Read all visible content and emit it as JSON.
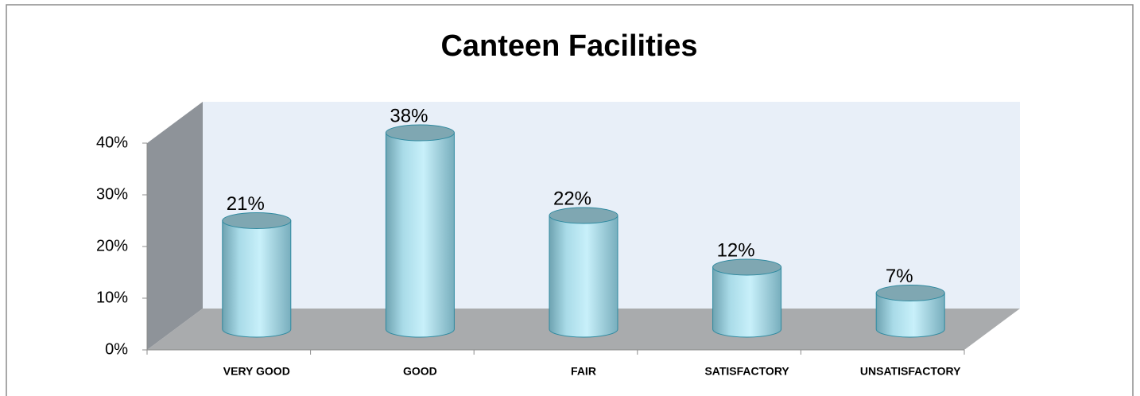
{
  "chart_data": {
    "type": "bar3d_cylinder",
    "title": "Canteen Facilities",
    "categories": [
      "VERY GOOD",
      "GOOD",
      "FAIR",
      "SATISFACTORY",
      "UNSATISFACTORY"
    ],
    "values": [
      21,
      38,
      22,
      12,
      7
    ],
    "value_labels": [
      "21%",
      "38%",
      "22%",
      "12%",
      "7%"
    ],
    "color": "#bfeaf5",
    "ylim": [
      0,
      40
    ],
    "yticks": [
      {
        "value": 0,
        "label": "0%"
      },
      {
        "value": 10,
        "label": "10%"
      },
      {
        "value": 20,
        "label": "20%"
      },
      {
        "value": 30,
        "label": "30%"
      },
      {
        "value": 40,
        "label": "40%"
      }
    ]
  }
}
